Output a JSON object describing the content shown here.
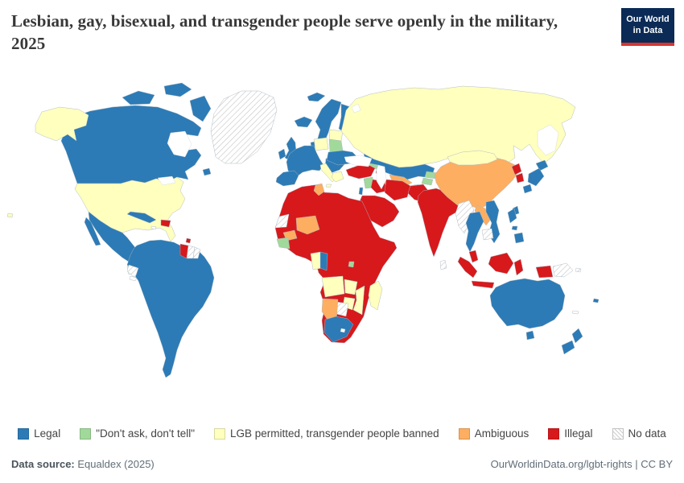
{
  "header": {
    "title": "Lesbian, gay, bisexual, and transgender people serve openly in the military, 2025"
  },
  "logo": {
    "line1": "Our World",
    "line2": "in Data",
    "bg": "#0B2A55",
    "accent": "#D8352E"
  },
  "colors": {
    "legal": "#2C7BB6",
    "dadt": "#A1D99B",
    "lgb_permitted": "#FFFFBE",
    "ambiguous": "#FDAE61",
    "illegal": "#D7191C",
    "none": "#FFFFFF"
  },
  "legend": {
    "items": [
      {
        "key": "legal",
        "label": "Legal"
      },
      {
        "key": "dadt",
        "label": "\"Don't ask, don't tell\""
      },
      {
        "key": "lgb_permitted",
        "label": "LGB permitted, transgender people banned"
      },
      {
        "key": "ambiguous",
        "label": "Ambiguous"
      },
      {
        "key": "illegal",
        "label": "Illegal"
      },
      {
        "key": "no_data",
        "label": "No data"
      }
    ]
  },
  "footer": {
    "source_label": "Data source:",
    "source": " Equaldex (2025)",
    "right": "OurWorldinData.org/lgbt-rights | CC BY"
  },
  "chart_data": {
    "type": "choropleth_map",
    "title": "Lesbian, gay, bisexual, and transgender people serve openly in the military, 2025",
    "year": 2025,
    "categories": [
      "Legal",
      "\"Don't ask, don't tell\"",
      "LGB permitted, transgender people banned",
      "Ambiguous",
      "Illegal",
      "No data"
    ],
    "countries": {
      "Canada": "legal",
      "United States": "lgb_permitted",
      "Greenland": "no_data",
      "Mexico": "legal",
      "Guatemala": "lgb_permitted",
      "Belize": "ambiguous",
      "Honduras": "illegal",
      "Nicaragua": "illegal",
      "El Salvador": "none",
      "Costa Rica": "none",
      "Panama": "none",
      "Cuba": "legal",
      "Haiti": "illegal",
      "Dominican Republic": "illegal",
      "Jamaica": "none",
      "Trinidad and Tobago": "illegal",
      "Colombia": "legal",
      "Venezuela": "legal",
      "Guyana": "illegal",
      "Suriname": "no_data",
      "French Guiana": "no_data",
      "Ecuador": "no_data",
      "Peru": "legal",
      "Brazil": "legal",
      "Bolivia": "legal",
      "Paraguay": "legal",
      "Chile": "legal",
      "Argentina": "legal",
      "Uruguay": "legal",
      "Iceland": "legal",
      "Ireland": "legal",
      "United Kingdom": "legal",
      "Norway": "legal",
      "Sweden": "legal",
      "Finland": "legal",
      "Denmark": "legal",
      "France": "legal",
      "Spain": "legal",
      "Portugal": "legal",
      "Germany": "legal",
      "Netherlands": "legal",
      "Belgium": "legal",
      "Switzerland": "legal",
      "Austria": "legal",
      "Czechia": "legal",
      "Hungary": "legal",
      "Croatia": "legal",
      "Serbia": "legal",
      "Romania": "legal",
      "Bulgaria": "legal",
      "Albania": "legal",
      "Moldova": "legal",
      "Ukraine": "legal",
      "Poland": "lgb_permitted",
      "Estonia": "lgb_permitted",
      "Latvia": "lgb_permitted",
      "Lithuania": "lgb_permitted",
      "Belarus": "dadt",
      "Italy": "lgb_permitted",
      "Greece": "lgb_permitted",
      "Russia": "lgb_permitted",
      "Turkey": "illegal",
      "Georgia": "dadt",
      "Armenia": "illegal",
      "Azerbaijan": "illegal",
      "Syria": "dadt",
      "Israel": "legal",
      "Jordan": "illegal",
      "Iraq": "illegal",
      "Iran": "illegal",
      "Saudi Arabia": "illegal",
      "Yemen": "illegal",
      "Oman": "illegal",
      "United Arab Emirates": "illegal",
      "Kuwait": "illegal",
      "Qatar": "illegal",
      "Egypt": "illegal",
      "Kazakhstan": "legal",
      "Uzbekistan": "ambiguous",
      "Turkmenistan": "ambiguous",
      "Kyrgyzstan": "dadt",
      "Tajikistan": "dadt",
      "Afghanistan": "no_data",
      "Pakistan": "illegal",
      "India": "illegal",
      "Nepal": "illegal",
      "Bangladesh": "illegal",
      "Sri Lanka": "no_data",
      "China": "ambiguous",
      "Mongolia": "lgb_permitted",
      "North Korea": "illegal",
      "South Korea": "illegal",
      "Japan": "legal",
      "Taiwan": "legal",
      "Myanmar": "no_data",
      "Thailand": "legal",
      "Laos": "ambiguous",
      "Vietnam": "legal",
      "Cambodia": "no_data",
      "Malaysia": "illegal",
      "Indonesia": "illegal",
      "Philippines": "legal",
      "Papua New Guinea": "no_data",
      "Morocco": "illegal",
      "Western Sahara": "no_data",
      "Algeria": "illegal",
      "Tunisia": "ambiguous",
      "Libya": "illegal",
      "Mauritania": "illegal",
      "Mali": "illegal",
      "Burkina Faso": "ambiguous",
      "Niger": "ambiguous",
      "Chad": "illegal",
      "Sudan": "illegal",
      "South Sudan": "illegal",
      "Eritrea": "illegal",
      "Djibouti": "illegal",
      "Ethiopia": "illegal",
      "Somalia": "illegal",
      "Senegal": "illegal",
      "Guinea": "illegal",
      "Cote d'Ivoire": "dadt",
      "Ghana": "illegal",
      "Nigeria": "illegal",
      "Cameroon": "illegal",
      "Central African Republic": "illegal",
      "Democratic Republic of Congo": "illegal",
      "Congo": "legal",
      "Gabon": "lgb_permitted",
      "Equatorial Guinea": "lgb_permitted",
      "Uganda": "illegal",
      "Kenya": "illegal",
      "Tanzania": "illegal",
      "Rwanda": "dadt",
      "Burundi": "dadt",
      "Angola": "lgb_permitted",
      "Zambia": "lgb_permitted",
      "Malawi": "illegal",
      "Mozambique": "lgb_permitted",
      "Zimbabwe": "lgb_permitted",
      "Botswana": "no_data",
      "Namibia": "ambiguous",
      "South Africa": "legal",
      "Lesotho": "none",
      "Madagascar": "lgb_permitted",
      "Australia": "legal",
      "New Zealand": "legal",
      "Fiji": "legal",
      "New Caledonia": "none",
      "Hawaii": "lgb_permitted"
    }
  }
}
